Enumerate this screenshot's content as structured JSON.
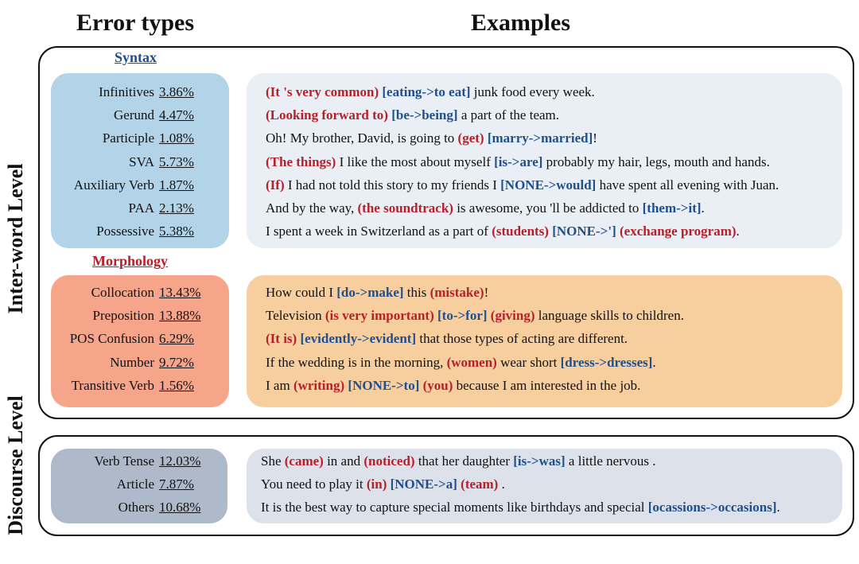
{
  "headings": {
    "error_types": "Error types",
    "examples": "Examples"
  },
  "side_labels": {
    "inter_word": "Inter-word Level",
    "discourse": "Discourse Level"
  },
  "colors": {
    "syntax_panel": "#b3d4e8",
    "syntax_examples_bg": "#e9eff4",
    "morphology_panel": "#f6a58b",
    "morphology_examples_bg": "#f7cf9f",
    "discourse_panel": "#aeb9ca",
    "discourse_examples_bg": "#dce1ea",
    "syntax_title": "#1f4f8c",
    "morphology_title": "#b5202a",
    "correction_blue": "#1f4f8c",
    "span_red": "#b5202a"
  },
  "syntax": {
    "title": "Syntax",
    "stats": [
      {
        "name": "Infinitives",
        "pct": "3.86%"
      },
      {
        "name": "Gerund",
        "pct": "4.47%"
      },
      {
        "name": "Participle",
        "pct": "1.08%"
      },
      {
        "name": "SVA",
        "pct": "5.73%"
      },
      {
        "name": "Auxiliary Verb",
        "pct": "1.87%"
      },
      {
        "name": "PAA",
        "pct": "2.13%"
      },
      {
        "name": "Possessive",
        "pct": "5.38%"
      }
    ],
    "examples": [
      [
        {
          "t": "(It 's very common)",
          "c": "red"
        },
        {
          "t": " "
        },
        {
          "t": "[eating->to eat]",
          "c": "blue"
        },
        {
          "t": " junk food every week."
        }
      ],
      [
        {
          "t": "(Looking forward to)",
          "c": "red"
        },
        {
          "t": " "
        },
        {
          "t": "[be->being]",
          "c": "blue"
        },
        {
          "t": " a part of the team."
        }
      ],
      [
        {
          "t": "Oh! My brother, David, is going to "
        },
        {
          "t": "(get)",
          "c": "red"
        },
        {
          "t": " "
        },
        {
          "t": "[marry->married]",
          "c": "blue"
        },
        {
          "t": "!"
        }
      ],
      [
        {
          "t": "(The things)",
          "c": "red"
        },
        {
          "t": " I like the most about myself "
        },
        {
          "t": "[is->are]",
          "c": "blue"
        },
        {
          "t": " probably my hair, legs, mouth and hands."
        }
      ],
      [
        {
          "t": "(If)",
          "c": "red"
        },
        {
          "t": " I had not told this story to my friends I "
        },
        {
          "t": "[NONE->would]",
          "c": "blue"
        },
        {
          "t": " have spent all evening with Juan."
        }
      ],
      [
        {
          "t": "And by the way, "
        },
        {
          "t": "(the soundtrack)",
          "c": "red"
        },
        {
          "t": " is awesome, you 'll be addicted to "
        },
        {
          "t": "[them->it]",
          "c": "blue"
        },
        {
          "t": "."
        }
      ],
      [
        {
          "t": "I spent a week in Switzerland as a part of "
        },
        {
          "t": "(students)",
          "c": "red"
        },
        {
          "t": " "
        },
        {
          "t": "[NONE->']",
          "c": "blue"
        },
        {
          "t": " "
        },
        {
          "t": "(exchange program)",
          "c": "red"
        },
        {
          "t": "."
        }
      ]
    ]
  },
  "morphology": {
    "title": "Morphology",
    "stats": [
      {
        "name": "Collocation",
        "pct": "13.43%"
      },
      {
        "name": "Preposition",
        "pct": "13.88%"
      },
      {
        "name": "POS Confusion",
        "pct": "6.29%"
      },
      {
        "name": "Number",
        "pct": "9.72%"
      },
      {
        "name": "Transitive Verb",
        "pct": "1.56%"
      }
    ],
    "examples": [
      [
        {
          "t": "How could I "
        },
        {
          "t": "[do->make]",
          "c": "blue"
        },
        {
          "t": " this "
        },
        {
          "t": "(mistake)",
          "c": "red"
        },
        {
          "t": "!"
        }
      ],
      [
        {
          "t": "Television "
        },
        {
          "t": "(is very important)",
          "c": "red"
        },
        {
          "t": " "
        },
        {
          "t": "[to->for]",
          "c": "blue"
        },
        {
          "t": " "
        },
        {
          "t": "(giving)",
          "c": "red"
        },
        {
          "t": " language skills to children."
        }
      ],
      [
        {
          "t": "(It is)",
          "c": "red"
        },
        {
          "t": " "
        },
        {
          "t": "[evidently->evident]",
          "c": "blue"
        },
        {
          "t": " that those types of acting are different."
        }
      ],
      [
        {
          "t": "If the wedding is in the morning, "
        },
        {
          "t": "(women)",
          "c": "red"
        },
        {
          "t": " wear short "
        },
        {
          "t": "[dress->dresses]",
          "c": "blue"
        },
        {
          "t": "."
        }
      ],
      [
        {
          "t": "I am "
        },
        {
          "t": "(writing)",
          "c": "red"
        },
        {
          "t": " "
        },
        {
          "t": "[NONE->to]",
          "c": "blue"
        },
        {
          "t": " "
        },
        {
          "t": "(you)",
          "c": "red"
        },
        {
          "t": " because I am interested in the job."
        }
      ]
    ]
  },
  "discourse": {
    "stats": [
      {
        "name": "Verb Tense",
        "pct": "12.03%"
      },
      {
        "name": "Article",
        "pct": "7.87%"
      },
      {
        "name": "Others",
        "pct": "10.68%"
      }
    ],
    "examples": [
      [
        {
          "t": "She "
        },
        {
          "t": "(came)",
          "c": "red"
        },
        {
          "t": " in and "
        },
        {
          "t": "(noticed)",
          "c": "red"
        },
        {
          "t": " that her daughter "
        },
        {
          "t": "[is->was]",
          "c": "blue"
        },
        {
          "t": " a little nervous ."
        }
      ],
      [
        {
          "t": "You need to play it "
        },
        {
          "t": "(in)",
          "c": "red"
        },
        {
          "t": " "
        },
        {
          "t": "[NONE->a]",
          "c": "blue"
        },
        {
          "t": " "
        },
        {
          "t": "(team)",
          "c": "red"
        },
        {
          "t": " ."
        }
      ],
      [
        {
          "t": "It is the best way to capture special moments like birthdays and special "
        },
        {
          "t": "[ocassions->occasions]",
          "c": "blue"
        },
        {
          "t": "."
        }
      ]
    ]
  }
}
